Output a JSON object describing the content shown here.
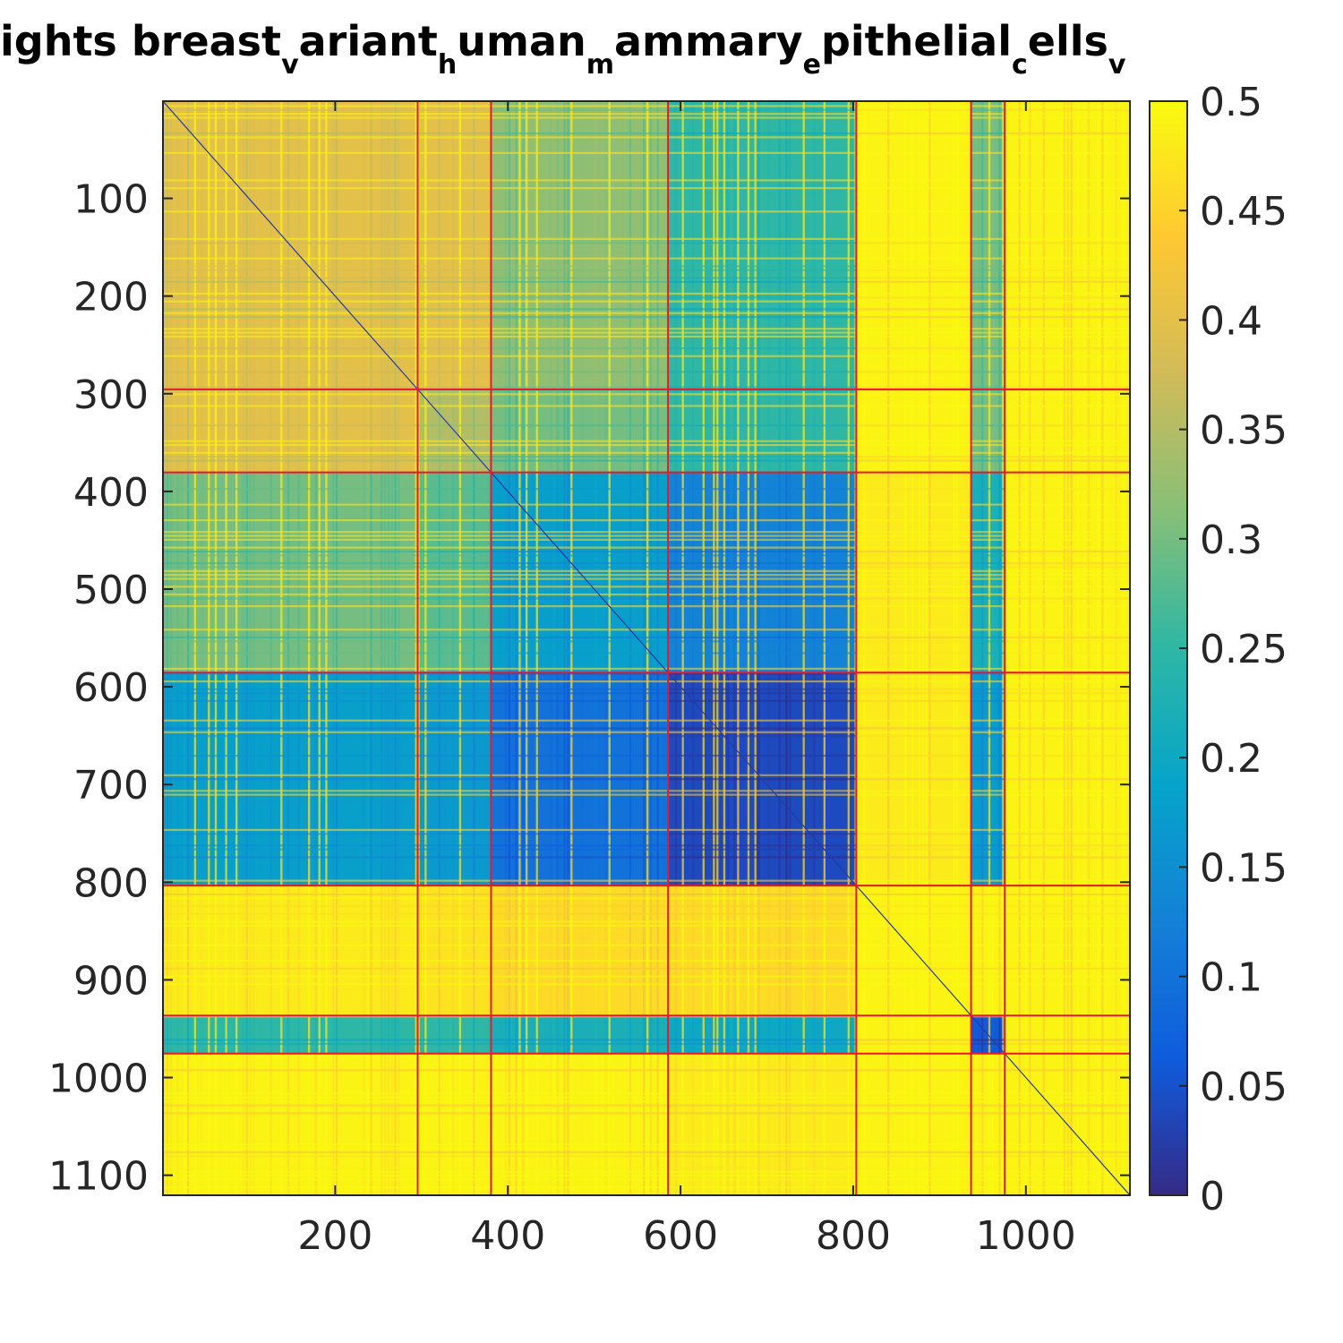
{
  "chart_data": {
    "type": "heatmap",
    "title_parts": [
      {
        "text": "ights breast",
        "sub": false
      },
      {
        "text": "v",
        "sub": true
      },
      {
        "text": "ariant",
        "sub": false
      },
      {
        "text": "h",
        "sub": true
      },
      {
        "text": "uman",
        "sub": false
      },
      {
        "text": "m",
        "sub": true
      },
      {
        "text": "ammary",
        "sub": false
      },
      {
        "text": "e",
        "sub": true
      },
      {
        "text": "pithelial",
        "sub": false
      },
      {
        "text": "c",
        "sub": true
      },
      {
        "text": "ells",
        "sub": false
      },
      {
        "text": "v",
        "sub": true
      }
    ],
    "n": 1120,
    "xlim": [
      0.5,
      1120.5
    ],
    "ylim": [
      0.5,
      1120.5
    ],
    "x_ticks": [
      200,
      400,
      600,
      800,
      1000
    ],
    "y_ticks": [
      100,
      200,
      300,
      400,
      500,
      600,
      700,
      800,
      900,
      1000,
      1100
    ],
    "colorbar": {
      "range": [
        0,
        0.5
      ],
      "ticks": [
        0,
        0.05,
        0.1,
        0.15,
        0.2,
        0.25,
        0.3,
        0.35,
        0.4,
        0.45,
        0.5
      ],
      "tick_labels": [
        "0",
        "0.05",
        "0.1",
        "0.15",
        "0.2",
        "0.25",
        "0.3",
        "0.35",
        "0.4",
        "0.45",
        "0.5"
      ],
      "colormap": [
        "#352a87",
        "#0f5cdd",
        "#1481d6",
        "#06a4ca",
        "#2eb7a4",
        "#87bf77",
        "#d1bb59",
        "#fec832",
        "#f9fb0e"
      ]
    },
    "cluster_boundaries": [
      295,
      380,
      585,
      803,
      936,
      975
    ],
    "block_mean_values": [
      [
        0.4,
        0.4,
        0.32,
        0.25,
        0.49,
        0.3,
        0.49
      ],
      [
        0.4,
        0.35,
        0.3,
        0.25,
        0.49,
        0.3,
        0.49
      ],
      [
        0.3,
        0.28,
        0.18,
        0.13,
        0.48,
        0.22,
        0.49
      ],
      [
        0.18,
        0.17,
        0.1,
        0.04,
        0.48,
        0.17,
        0.49
      ],
      [
        0.48,
        0.47,
        0.46,
        0.46,
        0.49,
        0.49,
        0.49
      ],
      [
        0.25,
        0.25,
        0.22,
        0.2,
        0.49,
        0.06,
        0.49
      ],
      [
        0.49,
        0.49,
        0.49,
        0.48,
        0.49,
        0.49,
        0.49
      ]
    ],
    "boundary_line_color": "#e8192c"
  }
}
